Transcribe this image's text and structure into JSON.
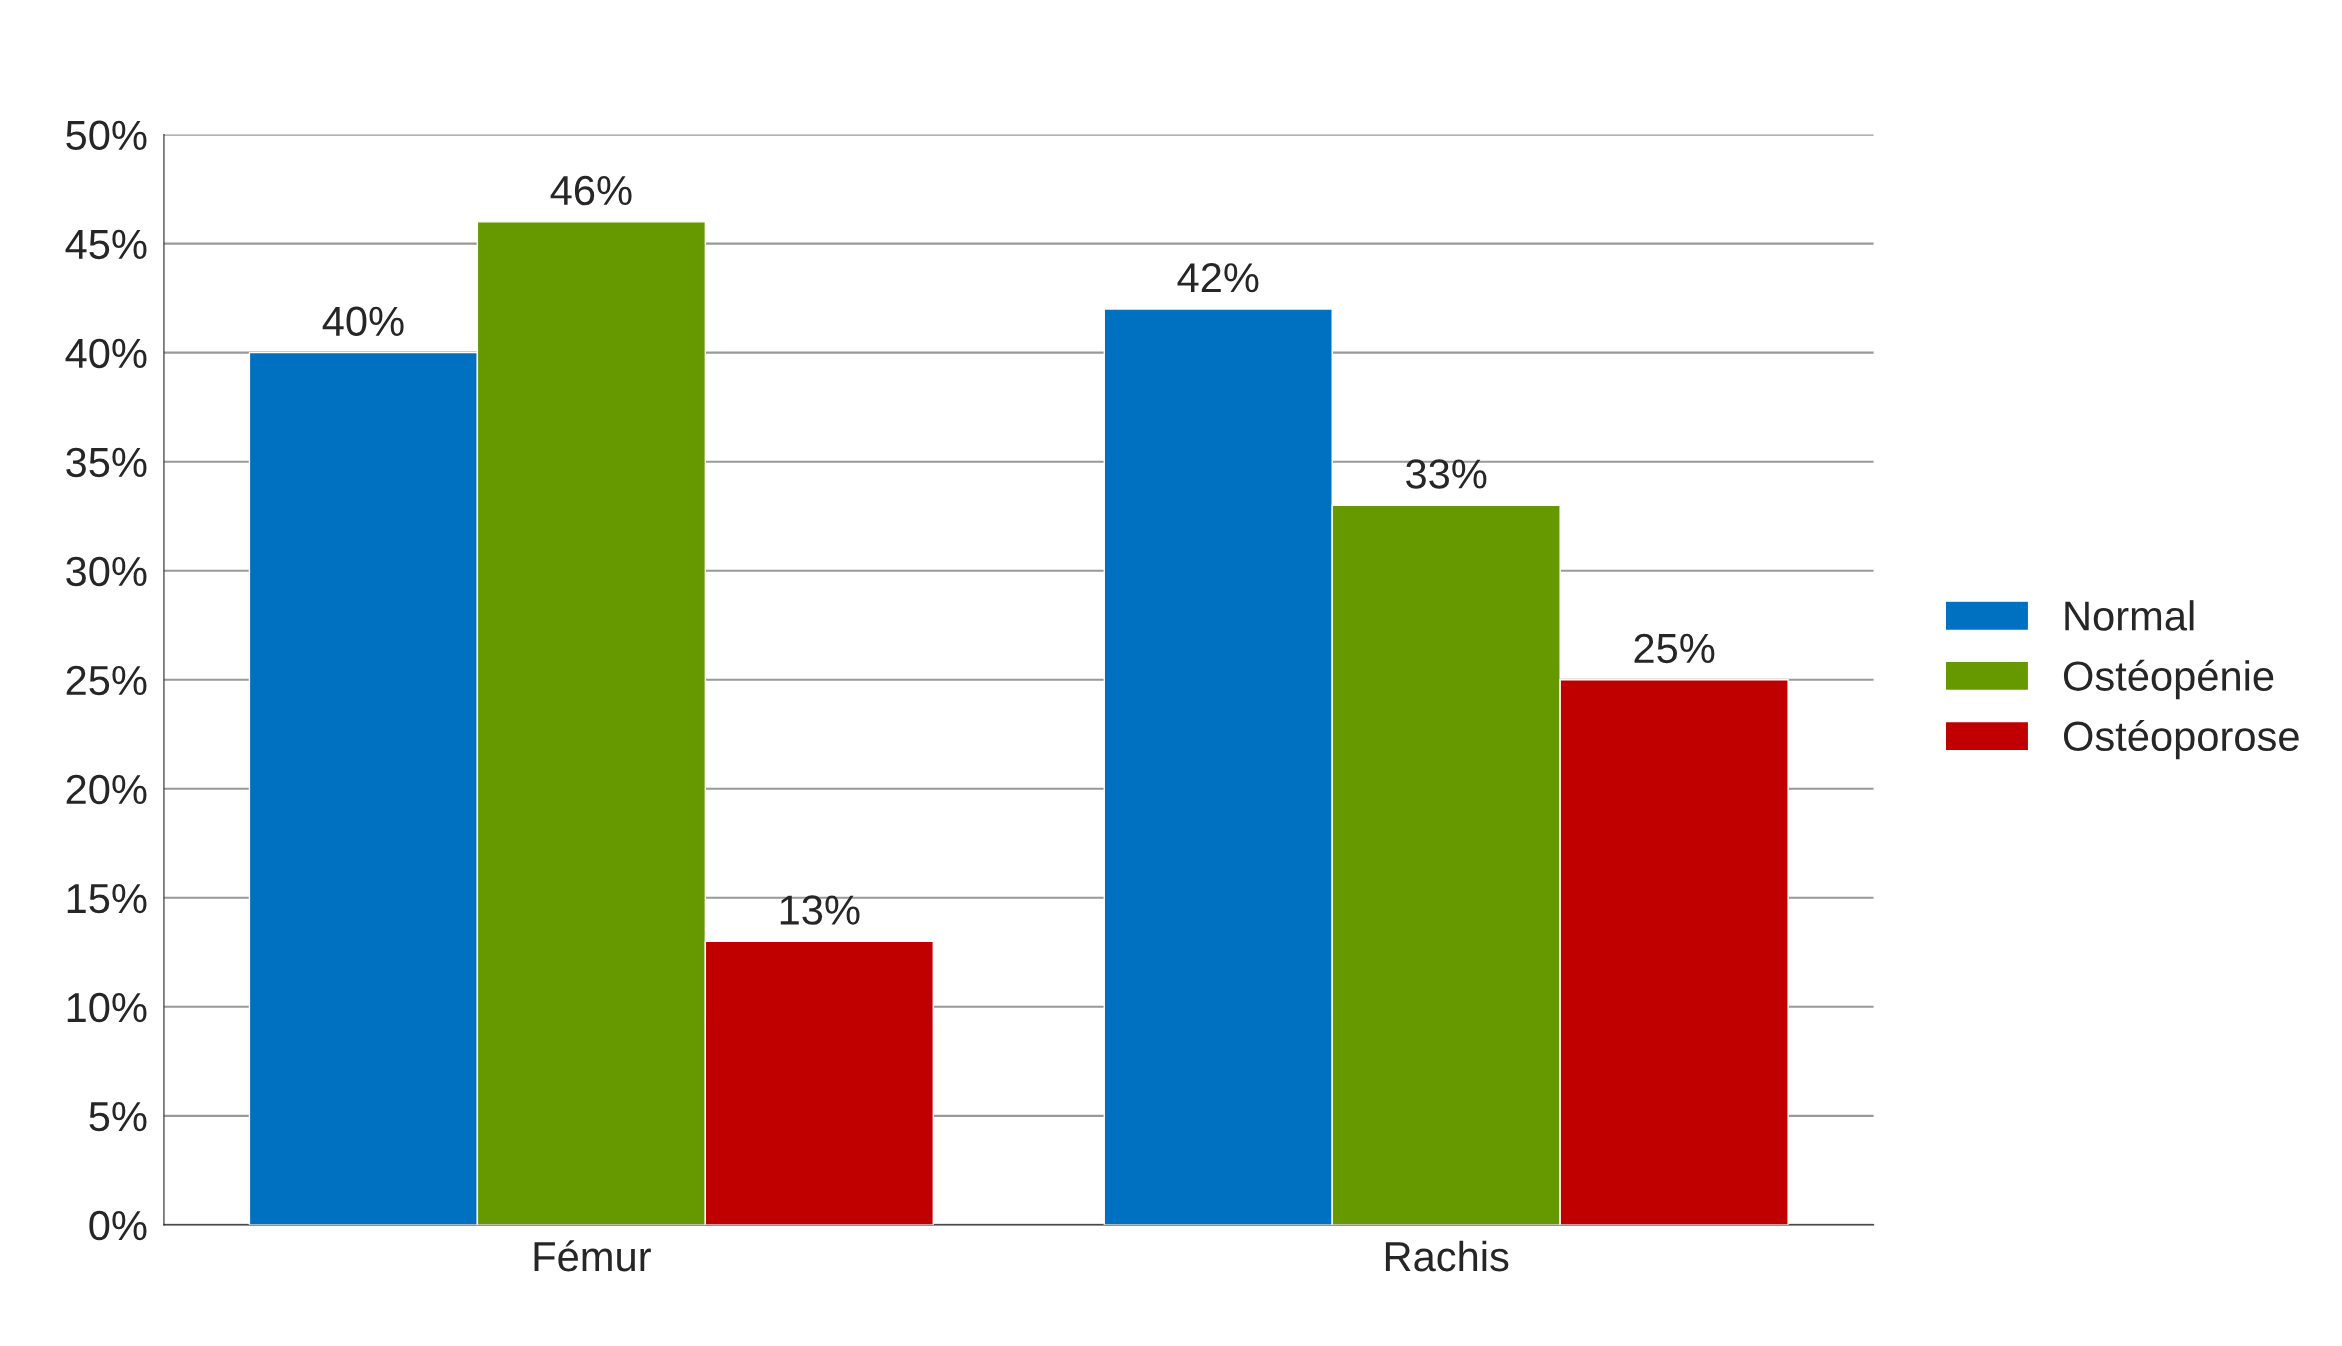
{
  "chart_data": {
    "type": "bar",
    "categories": [
      "Fémur",
      "Rachis"
    ],
    "series": [
      {
        "name": "Normal",
        "color": "#0070c0",
        "values": [
          40,
          42
        ],
        "value_labels": [
          "40%",
          "42%"
        ]
      },
      {
        "name": "Ostéopénie",
        "color": "#669900",
        "values": [
          46,
          33
        ],
        "value_labels": [
          "46%",
          "33%"
        ]
      },
      {
        "name": "Ostéoporose",
        "color": "#c00000",
        "values": [
          13,
          25
        ],
        "value_labels": [
          "13%",
          "25%"
        ]
      }
    ],
    "ylim": [
      0,
      50
    ],
    "yticks": [
      {
        "value": 0,
        "label": "0%"
      },
      {
        "value": 5,
        "label": "5%"
      },
      {
        "value": 10,
        "label": "10%"
      },
      {
        "value": 15,
        "label": "15%"
      },
      {
        "value": 20,
        "label": "20%"
      },
      {
        "value": 25,
        "label": "25%"
      },
      {
        "value": 30,
        "label": "30%"
      },
      {
        "value": 35,
        "label": "35%"
      },
      {
        "value": 40,
        "label": "40%"
      },
      {
        "value": 45,
        "label": "45%"
      },
      {
        "value": 50,
        "label": "50%"
      }
    ],
    "grid": "y",
    "legend": "right"
  }
}
